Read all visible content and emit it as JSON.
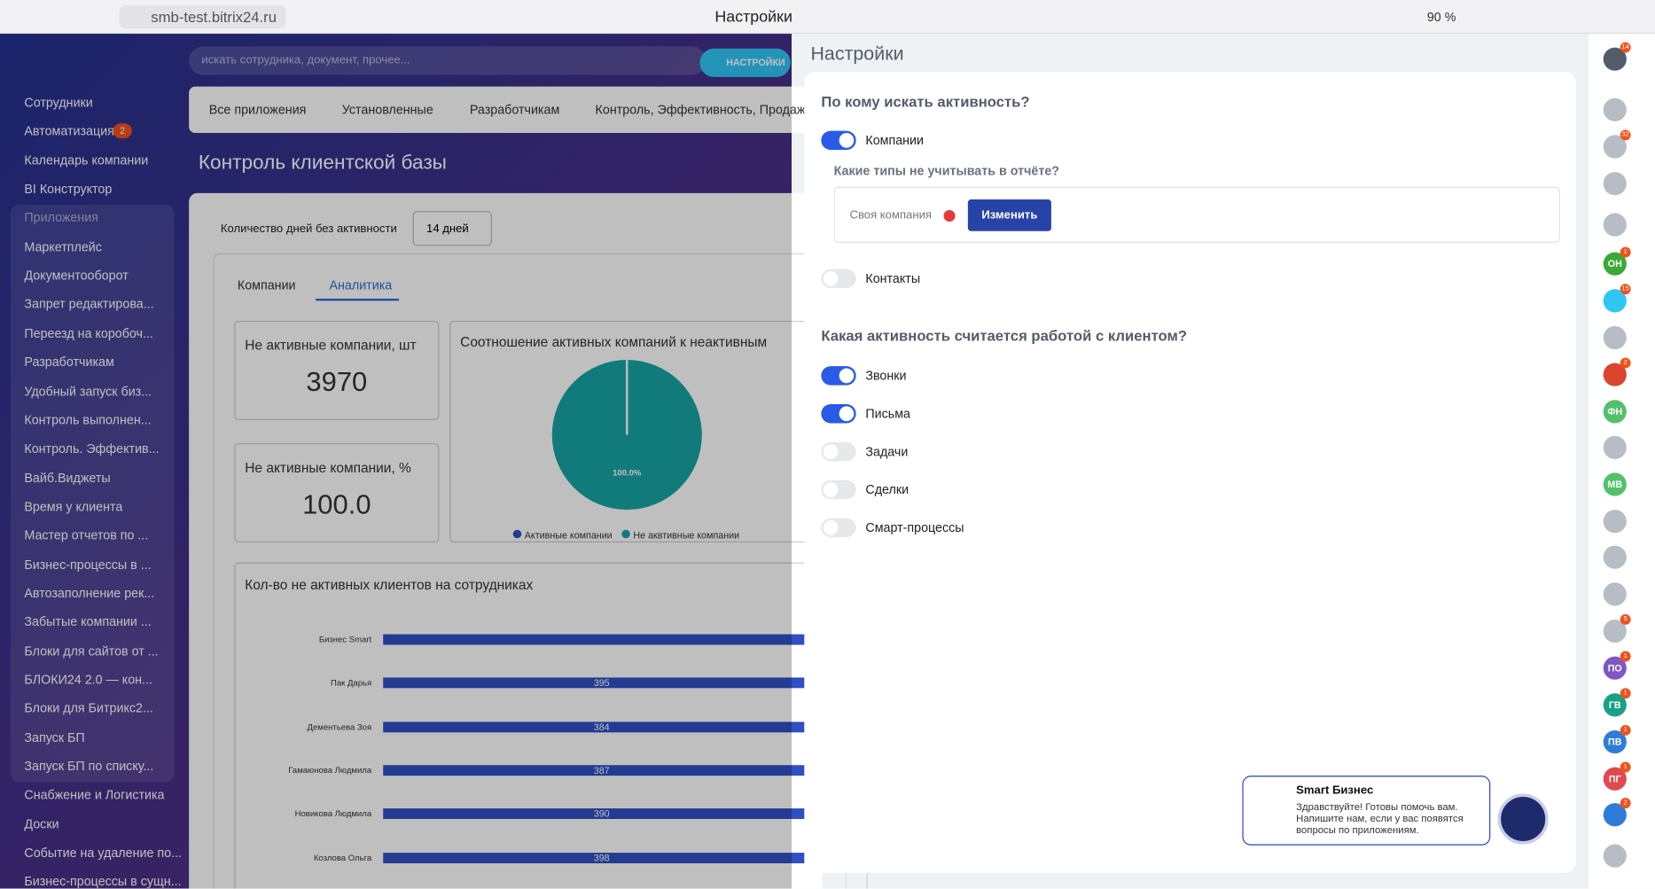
{
  "browser": {
    "url": "smb-test.bitrix24.ru",
    "tab_title": "Настройки",
    "zoom": "90 %"
  },
  "sidebar": {
    "items": [
      "Сотрудники",
      "Автоматизация",
      "Календарь компании",
      "BI Конструктор",
      "Приложения",
      "Маркетплейс",
      "Документооборот",
      "Запрет редактирова...",
      "Переезд на коробоч...",
      "Разработчикам",
      "Удобный запуск биз...",
      "Контроль выполнен...",
      "Контроль. Эффектив...",
      "Вайб.Виджеты",
      "Время у клиента",
      "Мастер отчетов по ...",
      "Бизнес-процессы в ...",
      "Автозаполнение рек...",
      "Забытые компании ...",
      "Блоки для сайтов от ...",
      "БЛОКИ24 2.0 — кон...",
      "Блоки для Битрикс2...",
      "Запуск БП",
      "Запуск БП по списку...",
      "Снабжение и Логистика",
      "Доски",
      "Событие на удаление по...",
      "Бизнес-процессы в сущн..."
    ],
    "automation_badge": "2"
  },
  "header": {
    "search_placeholder": "искать сотрудника, документ, прочее...",
    "settings_button": "НАСТРОЙКИ"
  },
  "app": {
    "tabs": [
      "Все приложения",
      "Установленные",
      "Разработчикам",
      "Контроль, Эффективность, Продаж"
    ],
    "title": "Контроль клиентской базы",
    "days_label": "Количество дней без активности",
    "days_select": "14 дней",
    "subtabs": [
      "Компании",
      "Аналитика"
    ],
    "kpi": [
      {
        "label": "Не активные компании, шт",
        "value": "3970"
      },
      {
        "label": "Не активные компании, %",
        "value": "100.0"
      }
    ],
    "pie": {
      "title": "Соотношение активных компаний к неактивным",
      "label": "100.0%",
      "legend": [
        "Активные компании",
        "Не аквтивные компании"
      ]
    },
    "bar_chart": {
      "title": "Кол-во не активных клиентов на сотрудниках",
      "rows": [
        {
          "name": "Бизнес Smart"
        },
        {
          "name": "Пак Дарья",
          "value": "395"
        },
        {
          "name": "Дементьева Зоя",
          "value": "384"
        },
        {
          "name": "Гамаюнова Людмила",
          "value": "387"
        },
        {
          "name": "Новикова Людмила",
          "value": "390"
        },
        {
          "name": "Козлова Ольга",
          "value": "398"
        }
      ]
    }
  },
  "settings": {
    "title": "Настройки",
    "question_1": "По кому искать активность?",
    "companies": "Компании",
    "sub_question": "Какие типы не учитывать в отчёте?",
    "chip": "Своя компания",
    "change_button": "Изменить",
    "contacts": "Контакты",
    "question_2": "Какая активность считается работой с клиентом?",
    "toggles": [
      {
        "label": "Звонки",
        "on": true
      },
      {
        "label": "Письма",
        "on": true
      },
      {
        "label": "Задачи",
        "on": false
      },
      {
        "label": "Сделки",
        "on": false
      },
      {
        "label": "Смарт-процессы",
        "on": false
      }
    ]
  },
  "chat": {
    "name": "Smart Бизнес",
    "message": [
      "Здравствуйте! Готовы помочь вам.",
      "Напишите нам, если у вас появятся",
      "вопросы по приложениям."
    ]
  },
  "right_bar": [
    {
      "badge": "14"
    },
    {},
    {
      "badge": "32"
    },
    {},
    {},
    {
      "label": "ОН",
      "badge": "1"
    },
    {
      "badge": "15"
    },
    {},
    {
      "badge": "2"
    },
    {
      "label": "ФН"
    },
    {},
    {
      "label": "МВ"
    },
    {},
    {},
    {},
    {
      "badge": "5"
    },
    {
      "label": "ПО",
      "badge": "1"
    },
    {
      "label": "ГВ",
      "badge": "1"
    },
    {
      "label": "ПВ",
      "badge": "1"
    },
    {
      "label": "ПГ",
      "badge": "1"
    },
    {
      "badge": "2"
    },
    {}
  ]
}
